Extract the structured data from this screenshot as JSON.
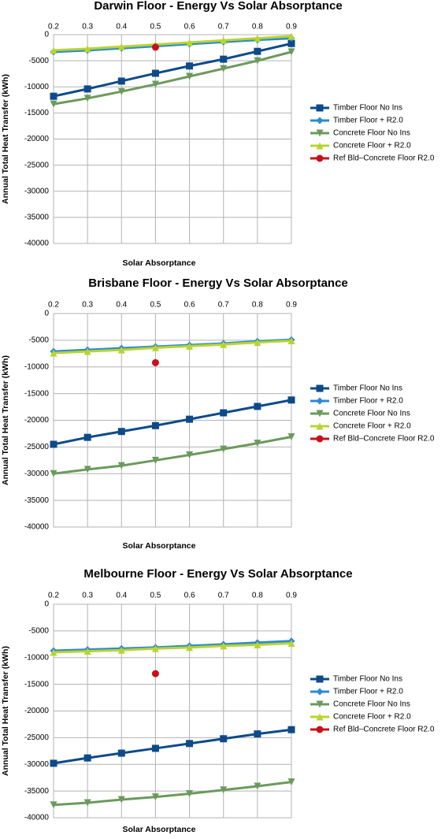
{
  "chart_data": [
    {
      "type": "line",
      "title": "Darwin Floor - Energy Vs Solar Absorptance",
      "x_label": "Solar Absorptance",
      "y_label": "Annual Total Heat Transfer (kWh)",
      "x": [
        0.2,
        0.3,
        0.4,
        0.5,
        0.6,
        0.7,
        0.8,
        0.9
      ],
      "xlim": [
        0.2,
        0.9
      ],
      "xticks": [
        0.2,
        0.3,
        0.4,
        0.5,
        0.6,
        0.7,
        0.8,
        0.9
      ],
      "ylim": [
        -40000,
        0
      ],
      "yticks": [
        0,
        -5000,
        -10000,
        -15000,
        -20000,
        -25000,
        -30000,
        -35000,
        -40000
      ],
      "grid": true,
      "legend": "right",
      "series": [
        {
          "name": "Timber Floor No Ins",
          "color": "#0d4a8a",
          "marker": "square",
          "values": [
            -11800,
            -10400,
            -8900,
            -7400,
            -6000,
            -4700,
            -3200,
            -1700
          ]
        },
        {
          "name": "Timber Floor + R2.0",
          "color": "#2a8ad4",
          "marker": "diamond",
          "values": [
            -3300,
            -3000,
            -2600,
            -2200,
            -1800,
            -1400,
            -1000,
            -700
          ]
        },
        {
          "name": "Concrete Floor No Ins",
          "color": "#6b9a5c",
          "marker": "triangle-down",
          "values": [
            -13300,
            -12200,
            -10900,
            -9500,
            -8000,
            -6500,
            -5000,
            -3300
          ]
        },
        {
          "name": "Concrete Floor + R2.0",
          "color": "#b8d430",
          "marker": "triangle-up",
          "values": [
            -3000,
            -2700,
            -2300,
            -1900,
            -1500,
            -1100,
            -700,
            -300
          ]
        },
        {
          "name": "Ref Bld–Concrete Floor R2.0",
          "color": "#c8101a",
          "marker": "circle",
          "values": [
            null,
            null,
            null,
            -2400,
            null,
            null,
            null,
            null
          ]
        }
      ]
    },
    {
      "type": "line",
      "title": "Brisbane Floor - Energy Vs Solar Absorptance",
      "x_label": "Solar Absorptance",
      "y_label": "Annual Total Heat Transfer (kWh)",
      "x": [
        0.2,
        0.3,
        0.4,
        0.5,
        0.6,
        0.7,
        0.8,
        0.9
      ],
      "xlim": [
        0.2,
        0.9
      ],
      "xticks": [
        0.2,
        0.3,
        0.4,
        0.5,
        0.6,
        0.7,
        0.8,
        0.9
      ],
      "ylim": [
        -40000,
        0
      ],
      "yticks": [
        0,
        -5000,
        -10000,
        -15000,
        -20000,
        -25000,
        -30000,
        -35000,
        -40000
      ],
      "grid": true,
      "legend": "right",
      "series": [
        {
          "name": "Timber Floor No Ins",
          "color": "#0d4a8a",
          "marker": "square",
          "values": [
            -24500,
            -23200,
            -22100,
            -21000,
            -19800,
            -18600,
            -17400,
            -16200
          ]
        },
        {
          "name": "Timber Floor + R2.0",
          "color": "#2a8ad4",
          "marker": "diamond",
          "values": [
            -7100,
            -6800,
            -6500,
            -6200,
            -5900,
            -5600,
            -5200,
            -4900
          ]
        },
        {
          "name": "Concrete Floor No Ins",
          "color": "#6b9a5c",
          "marker": "triangle-down",
          "values": [
            -30000,
            -29200,
            -28500,
            -27500,
            -26500,
            -25400,
            -24300,
            -23100
          ]
        },
        {
          "name": "Concrete Floor + R2.0",
          "color": "#b8d430",
          "marker": "triangle-up",
          "values": [
            -7400,
            -7100,
            -6800,
            -6400,
            -6100,
            -5800,
            -5400,
            -5100
          ]
        },
        {
          "name": "Ref Bld–Concrete Floor R2.0",
          "color": "#c8101a",
          "marker": "circle",
          "values": [
            null,
            null,
            null,
            -9200,
            null,
            null,
            null,
            null
          ]
        }
      ]
    },
    {
      "type": "line",
      "title": "Melbourne Floor - Energy Vs Solar Absorptance",
      "x_label": "Solar Absorptance",
      "y_label": "Annual Total Heat Transfer (kWh)",
      "x": [
        0.2,
        0.3,
        0.4,
        0.5,
        0.6,
        0.7,
        0.8,
        0.9
      ],
      "xlim": [
        0.2,
        0.9
      ],
      "xticks": [
        0.2,
        0.3,
        0.4,
        0.5,
        0.6,
        0.7,
        0.8,
        0.9
      ],
      "ylim": [
        -40000,
        0
      ],
      "yticks": [
        0,
        -5000,
        -10000,
        -15000,
        -20000,
        -25000,
        -30000,
        -35000,
        -40000
      ],
      "grid": true,
      "legend": "right",
      "series": [
        {
          "name": "Timber Floor No Ins",
          "color": "#0d4a8a",
          "marker": "square",
          "values": [
            -29800,
            -28800,
            -27900,
            -27000,
            -26100,
            -25200,
            -24300,
            -23500
          ]
        },
        {
          "name": "Timber Floor + R2.0",
          "color": "#2a8ad4",
          "marker": "diamond",
          "values": [
            -8700,
            -8500,
            -8300,
            -8100,
            -7800,
            -7500,
            -7200,
            -6900
          ]
        },
        {
          "name": "Concrete Floor No Ins",
          "color": "#6b9a5c",
          "marker": "triangle-down",
          "values": [
            -37600,
            -37200,
            -36600,
            -36100,
            -35500,
            -34800,
            -34100,
            -33300
          ]
        },
        {
          "name": "Concrete Floor + R2.0",
          "color": "#b8d430",
          "marker": "triangle-up",
          "values": [
            -9000,
            -8800,
            -8600,
            -8300,
            -8100,
            -7800,
            -7600,
            -7300
          ]
        },
        {
          "name": "Ref Bld–Concrete Floor R2.0",
          "color": "#c8101a",
          "marker": "circle",
          "values": [
            null,
            null,
            null,
            -13000,
            null,
            null,
            null,
            null
          ]
        }
      ]
    }
  ]
}
